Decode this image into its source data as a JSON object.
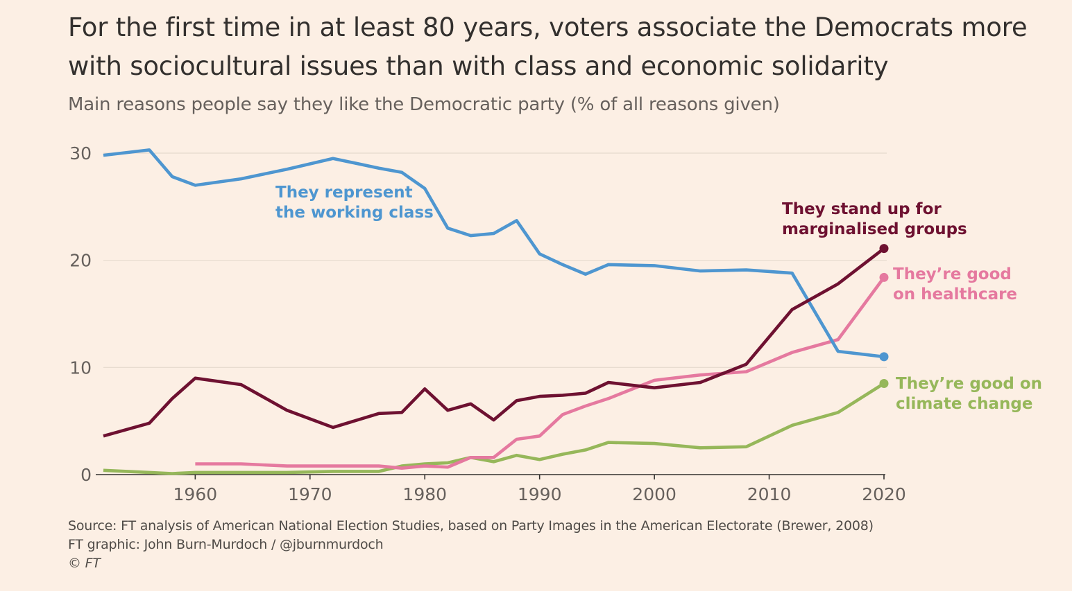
{
  "title_line1": "For the first time in at least 80 years, voters associate the Democrats more",
  "title_line2": "with sociocultural issues than with class and economic solidarity",
  "subtitle": "Main reasons people say they like the Democratic party (% of all reasons given)",
  "source_line1": "Source: FT analysis of American National Election Studies, based on Party Images in the American Electorate (Brewer, 2008)",
  "source_line2": "FT graphic: John Burn-Murdoch / @jburnmurdoch",
  "source_line3": "© FT",
  "chart_data": {
    "type": "line",
    "title": "For the first time in at least 80 years, voters associate the Democrats more with sociocultural issues than with class and economic solidarity",
    "ylabel": "% of all reasons given",
    "xlim": [
      1952,
      2020
    ],
    "ylim": [
      0,
      30
    ],
    "x_ticks": [
      1960,
      1970,
      1980,
      1990,
      2000,
      2010,
      2020
    ],
    "y_ticks": [
      0,
      10,
      20,
      30
    ],
    "grid": true,
    "series": [
      {
        "name": "They represent the working class",
        "label_lines": [
          "They represent",
          "the working class"
        ],
        "color": "#4e96d0",
        "end_dot": true,
        "x": [
          1952,
          1956,
          1958,
          1960,
          1964,
          1968,
          1972,
          1976,
          1978,
          1980,
          1982,
          1984,
          1986,
          1988,
          1990,
          1992,
          1994,
          1996,
          2000,
          2004,
          2008,
          2012,
          2016,
          2020
        ],
        "y": [
          29.8,
          30.3,
          27.8,
          27.0,
          27.6,
          28.5,
          29.5,
          28.6,
          28.2,
          26.7,
          23.0,
          22.3,
          22.5,
          23.7,
          20.6,
          19.6,
          18.7,
          19.6,
          19.5,
          19.0,
          19.1,
          18.8,
          11.5,
          11.0
        ]
      },
      {
        "name": "They stand up for marginalised groups",
        "label_lines": [
          "They stand up for",
          "marginalised groups"
        ],
        "color": "#6e1131",
        "end_dot": true,
        "x": [
          1952,
          1956,
          1958,
          1960,
          1964,
          1968,
          1972,
          1976,
          1978,
          1980,
          1982,
          1984,
          1986,
          1988,
          1990,
          1992,
          1994,
          1996,
          2000,
          2004,
          2008,
          2012,
          2016,
          2020
        ],
        "y": [
          3.6,
          4.8,
          7.1,
          9.0,
          8.4,
          6.0,
          4.4,
          5.7,
          5.8,
          8.0,
          6.0,
          6.6,
          5.1,
          6.9,
          7.3,
          7.4,
          7.6,
          8.6,
          8.1,
          8.6,
          10.3,
          15.4,
          17.8,
          21.1
        ]
      },
      {
        "name": "They're good on healthcare",
        "label_lines": [
          "They’re good",
          "on healthcare"
        ],
        "color": "#e5799f",
        "end_dot": true,
        "x": [
          1960,
          1964,
          1968,
          1972,
          1976,
          1978,
          1980,
          1982,
          1984,
          1986,
          1988,
          1990,
          1992,
          1994,
          1996,
          2000,
          2004,
          2008,
          2012,
          2016,
          2020
        ],
        "y": [
          1.0,
          1.0,
          0.8,
          0.8,
          0.8,
          0.6,
          0.8,
          0.7,
          1.6,
          1.6,
          3.3,
          3.6,
          5.6,
          6.4,
          7.1,
          8.8,
          9.3,
          9.6,
          11.4,
          12.6,
          18.4
        ]
      },
      {
        "name": "They're good on climate change",
        "label_lines": [
          "They’re good on",
          "climate change"
        ],
        "color": "#96b75a",
        "end_dot": true,
        "x": [
          1952,
          1956,
          1958,
          1960,
          1964,
          1968,
          1972,
          1976,
          1978,
          1980,
          1982,
          1984,
          1986,
          1988,
          1990,
          1992,
          1994,
          1996,
          2000,
          2004,
          2008,
          2012,
          2016,
          2020
        ],
        "y": [
          0.4,
          0.2,
          0.1,
          0.2,
          0.2,
          0.2,
          0.3,
          0.3,
          0.8,
          1.0,
          1.1,
          1.6,
          1.2,
          1.8,
          1.4,
          1.9,
          2.3,
          3.0,
          2.9,
          2.5,
          2.6,
          4.6,
          5.8,
          8.5
        ]
      }
    ]
  }
}
